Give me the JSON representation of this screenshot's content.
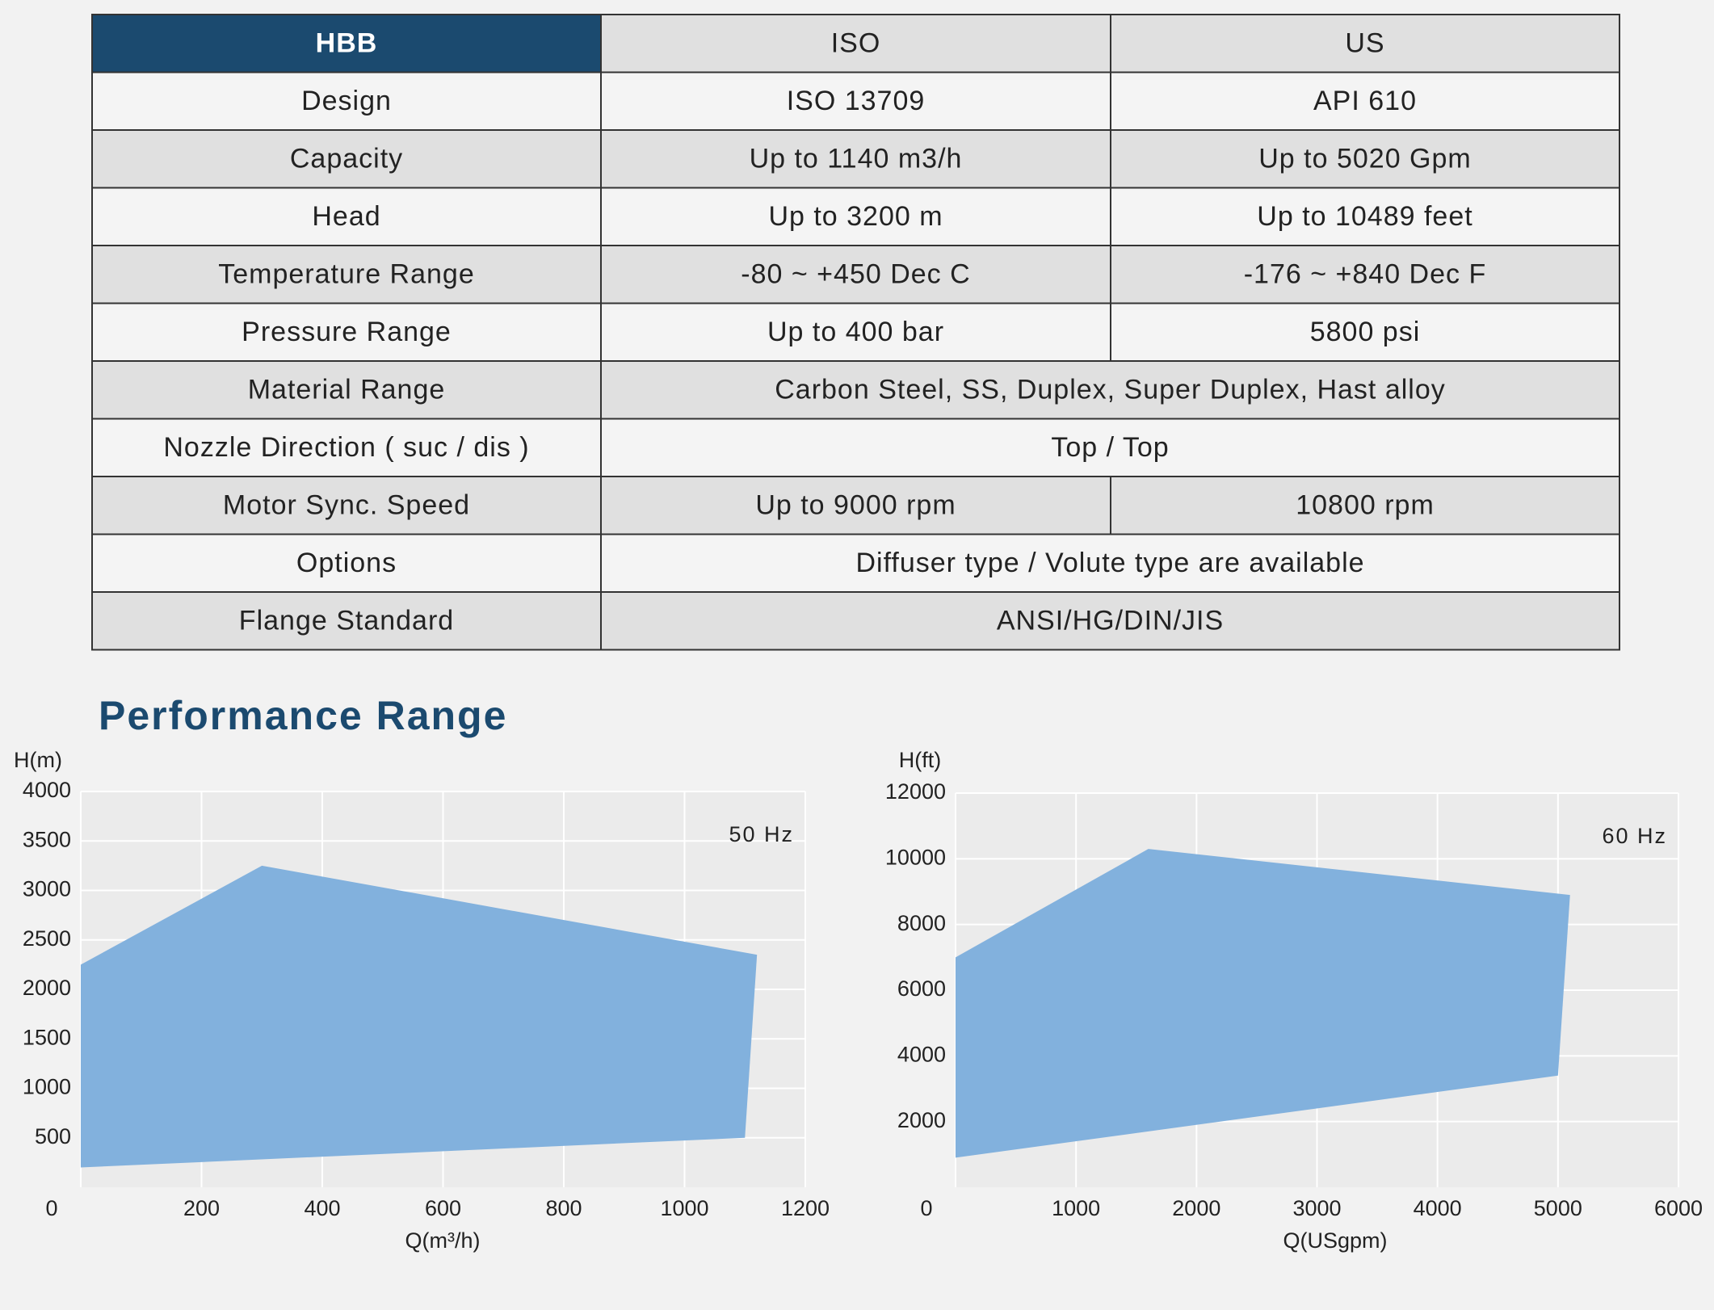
{
  "table": {
    "header": [
      "HBB",
      "ISO",
      "US"
    ],
    "rows": [
      [
        "Design",
        "ISO 13709",
        "API 610"
      ],
      [
        "Capacity",
        "Up to 1140 m3/h",
        "Up to 5020 Gpm"
      ],
      [
        "Head",
        "Up to 3200 m",
        "Up to 10489 feet"
      ],
      [
        "Temperature Range",
        "-80 ~ +450 Dec C",
        "-176 ~ +840 Dec F"
      ],
      [
        "Pressure Range",
        "Up to 400 bar",
        "5800 psi"
      ],
      [
        "Material Range",
        "Carbon Steel, SS, Duplex, Super Duplex, Hast alloy"
      ],
      [
        "Nozzle Direction ( suc / dis )",
        "Top / Top"
      ],
      [
        "Motor Sync. Speed",
        "Up to 9000 rpm",
        "10800 rpm"
      ],
      [
        "Options",
        "Diffuser type / Volute type are available"
      ],
      [
        "Flange Standard",
        "ANSI/HG/DIN/JIS"
      ]
    ]
  },
  "section_title": "Performance Range",
  "chart_data": [
    {
      "type": "polygon",
      "annotation": "50 Hz",
      "y_label": "H(m)",
      "x_label": "Q(m³/h)",
      "x": [
        0,
        300,
        1120,
        1100,
        0
      ],
      "y": [
        2250,
        3250,
        2350,
        500,
        200
      ],
      "color": "#82b1dd",
      "xlim": [
        0,
        1200
      ],
      "ylim": [
        0,
        4000
      ],
      "xticks": [
        0,
        200,
        400,
        600,
        800,
        1000,
        1200
      ],
      "yticks": [
        500,
        1000,
        1500,
        2000,
        2500,
        3000,
        3500,
        4000
      ],
      "grid": true
    },
    {
      "type": "polygon",
      "annotation": "60 Hz",
      "y_label": "H(ft)",
      "x_label": "Q(USgpm)",
      "x": [
        0,
        1600,
        5100,
        5000,
        0
      ],
      "y": [
        7000,
        10300,
        8900,
        3400,
        900
      ],
      "color": "#82b1dd",
      "xlim": [
        0,
        6000
      ],
      "ylim": [
        0,
        12000
      ],
      "xticks": [
        0,
        1000,
        2000,
        3000,
        4000,
        5000,
        6000
      ],
      "yticks": [
        2000,
        4000,
        6000,
        8000,
        10000,
        12000
      ],
      "grid": true
    }
  ]
}
